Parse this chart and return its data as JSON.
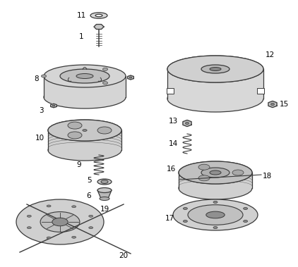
{
  "background_color": "#ffffff",
  "line_color": "#3a3a3a",
  "label_color": "#000000",
  "label_fontsize": 7.5,
  "lw": 0.9
}
